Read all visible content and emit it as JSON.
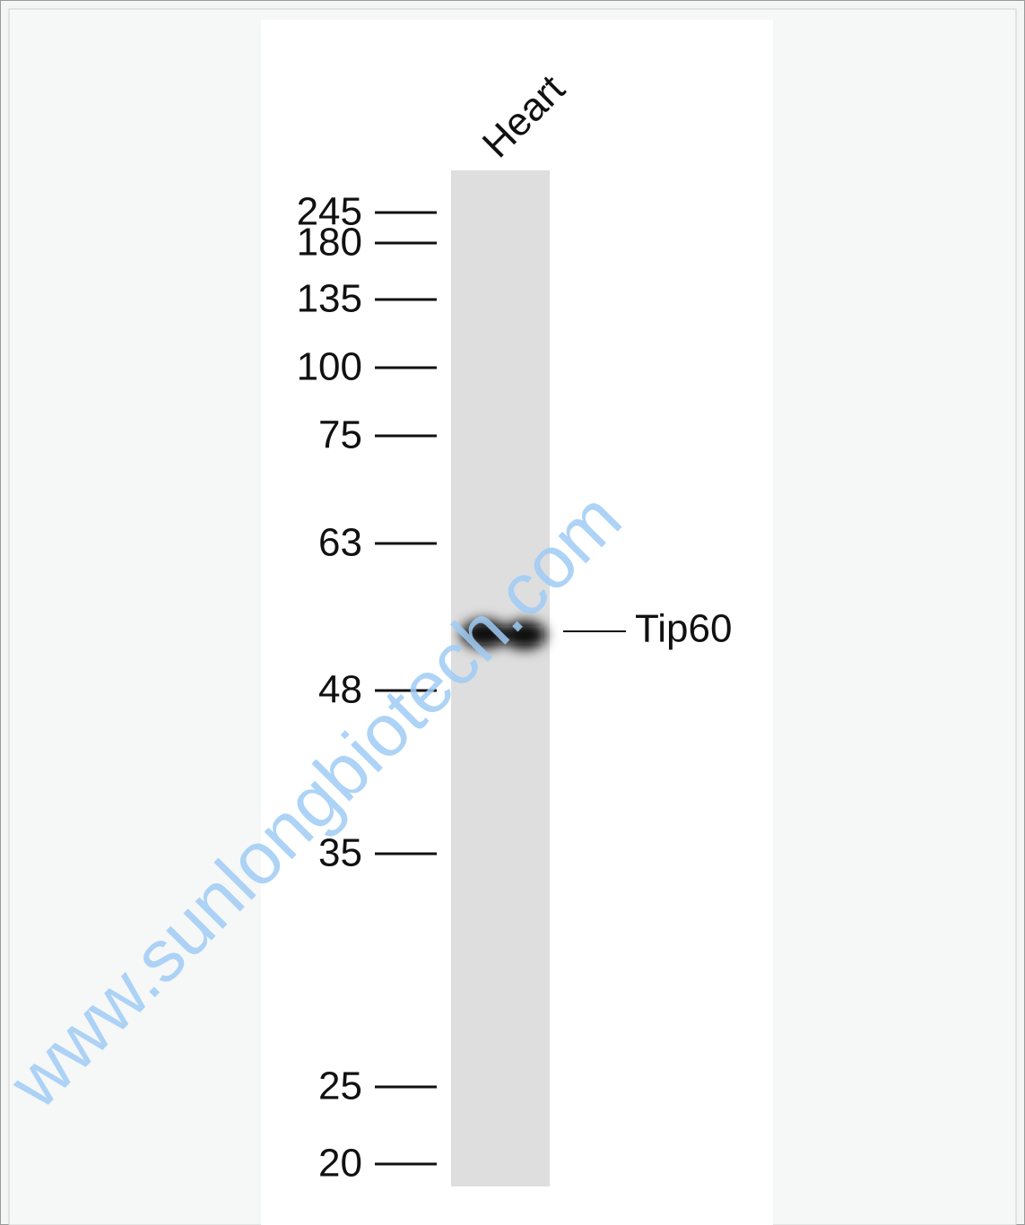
{
  "lane_label": "Heart",
  "markers": [
    "245",
    "180",
    "135",
    "100",
    "75",
    "63",
    "48",
    "35",
    "25",
    "20"
  ],
  "band_label": "Tip60",
  "watermark": "www.sunlongbiotech.com"
}
